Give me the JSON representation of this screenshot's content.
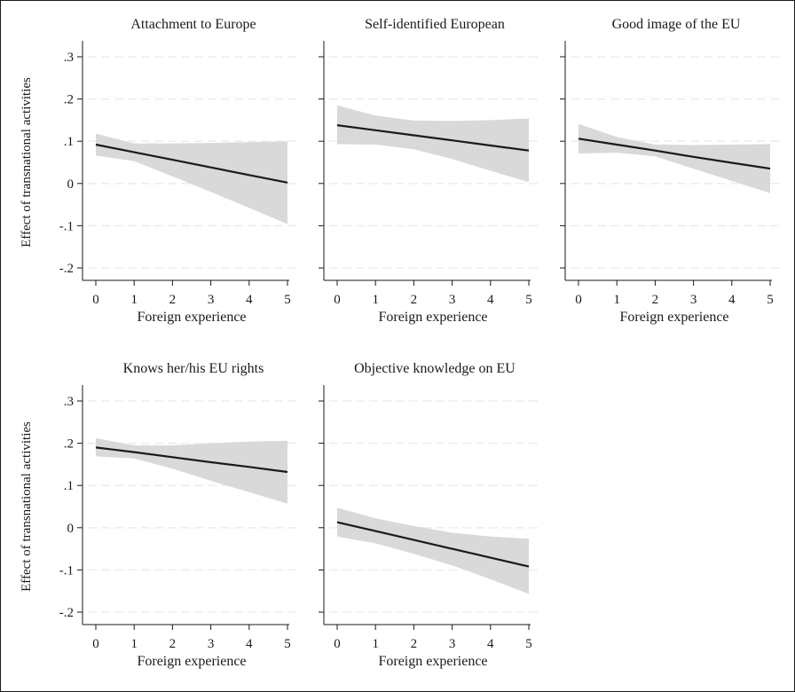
{
  "figure": {
    "ylabel": "Effect of transnational activities",
    "xlabel": "Foreign experience"
  },
  "chart_data": [
    {
      "type": "line",
      "title": "Attachment to Europe",
      "xlabel": "Foreign experience",
      "ylabel": "Effect of transnational activities",
      "x": [
        0,
        1,
        2,
        3,
        4,
        5
      ],
      "xlim": [
        0,
        5
      ],
      "ylim": [
        -0.2,
        0.3
      ],
      "yticks": [
        -0.2,
        -0.1,
        0,
        0.1,
        0.2,
        0.3
      ],
      "ytick_labels": [
        "-.2",
        "-.1",
        "0",
        ".1",
        ".2",
        ".3"
      ],
      "series": [
        {
          "role": "estimate",
          "values": [
            0.092,
            0.074,
            0.056,
            0.038,
            0.02,
            0.002
          ]
        },
        {
          "role": "ci_upper",
          "values": [
            0.118,
            0.095,
            0.095,
            0.096,
            0.098,
            0.1
          ]
        },
        {
          "role": "ci_lower",
          "values": [
            0.066,
            0.053,
            0.017,
            -0.02,
            -0.058,
            -0.096
          ]
        }
      ],
      "grid": true,
      "show_ylabel": true
    },
    {
      "type": "line",
      "title": "Self-identified European",
      "xlabel": "Foreign experience",
      "x": [
        0,
        1,
        2,
        3,
        4,
        5
      ],
      "xlim": [
        0,
        5
      ],
      "ylim": [
        -0.2,
        0.3
      ],
      "series": [
        {
          "role": "estimate",
          "values": [
            0.138,
            0.126,
            0.114,
            0.102,
            0.09,
            0.078
          ]
        },
        {
          "role": "ci_upper",
          "values": [
            0.185,
            0.161,
            0.149,
            0.148,
            0.15,
            0.154
          ]
        },
        {
          "role": "ci_lower",
          "values": [
            0.093,
            0.092,
            0.081,
            0.058,
            0.03,
            0.003
          ]
        }
      ],
      "grid": true,
      "show_ylabel": false
    },
    {
      "type": "line",
      "title": "Good image of the EU",
      "xlabel": "Foreign experience",
      "x": [
        0,
        1,
        2,
        3,
        4,
        5
      ],
      "xlim": [
        0,
        5
      ],
      "ylim": [
        -0.2,
        0.3
      ],
      "series": [
        {
          "role": "estimate",
          "values": [
            0.106,
            0.092,
            0.078,
            0.063,
            0.049,
            0.035
          ]
        },
        {
          "role": "ci_upper",
          "values": [
            0.141,
            0.11,
            0.092,
            0.091,
            0.092,
            0.093
          ]
        },
        {
          "role": "ci_lower",
          "values": [
            0.071,
            0.073,
            0.064,
            0.035,
            0.006,
            -0.023
          ]
        }
      ],
      "grid": true,
      "show_ylabel": false
    },
    {
      "type": "line",
      "title": "Knows her/his EU rights",
      "xlabel": "Foreign experience",
      "ylabel": "Effect of transnational activities",
      "x": [
        0,
        1,
        2,
        3,
        4,
        5
      ],
      "xlim": [
        0,
        5
      ],
      "ylim": [
        -0.2,
        0.3
      ],
      "yticks": [
        -0.2,
        -0.1,
        0,
        0.1,
        0.2,
        0.3
      ],
      "ytick_labels": [
        "-.2",
        "-.1",
        "0",
        ".1",
        ".2",
        ".3"
      ],
      "series": [
        {
          "role": "estimate",
          "values": [
            0.19,
            0.179,
            0.167,
            0.155,
            0.144,
            0.132
          ]
        },
        {
          "role": "ci_upper",
          "values": [
            0.212,
            0.195,
            0.195,
            0.2,
            0.204,
            0.206
          ]
        },
        {
          "role": "ci_lower",
          "values": [
            0.169,
            0.164,
            0.14,
            0.111,
            0.084,
            0.057
          ]
        }
      ],
      "grid": true,
      "show_ylabel": true
    },
    {
      "type": "line",
      "title": "Objective knowledge on EU",
      "xlabel": "Foreign experience",
      "x": [
        0,
        1,
        2,
        3,
        4,
        5
      ],
      "xlim": [
        0,
        5
      ],
      "ylim": [
        -0.2,
        0.3
      ],
      "series": [
        {
          "role": "estimate",
          "values": [
            0.013,
            -0.008,
            -0.029,
            -0.05,
            -0.071,
            -0.092
          ]
        },
        {
          "role": "ci_upper",
          "values": [
            0.047,
            0.022,
            0.004,
            -0.012,
            -0.021,
            -0.026
          ]
        },
        {
          "role": "ci_lower",
          "values": [
            -0.021,
            -0.037,
            -0.062,
            -0.089,
            -0.122,
            -0.157
          ]
        }
      ],
      "grid": true,
      "show_ylabel": false
    }
  ],
  "colors": {
    "background": "#ffffff",
    "plot_background": "#ffffff",
    "band_fill": "#d9d9d9",
    "line": "#1a1a1a",
    "axis": "#1a1a1a",
    "grid": "#eeeeee",
    "border": "#1a1a1a"
  }
}
